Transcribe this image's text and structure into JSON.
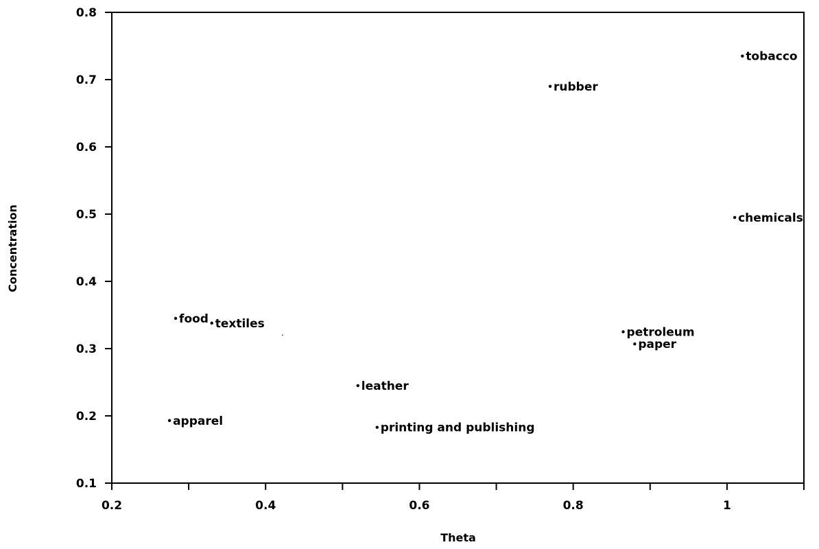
{
  "chart_data": {
    "type": "scatter",
    "xlabel": "Theta",
    "ylabel": "Concentration",
    "xlim": [
      0.2,
      1.1
    ],
    "ylim": [
      0.1,
      0.8
    ],
    "x_tick_labels": [
      {
        "value": 0.2,
        "label": "0.2"
      },
      {
        "value": 0.4,
        "label": "0.4"
      },
      {
        "value": 0.6,
        "label": "0.6"
      },
      {
        "value": 0.8,
        "label": "0.8"
      },
      {
        "value": 1.0,
        "label": "1"
      }
    ],
    "x_minor_ticks": [
      0.3,
      0.5,
      0.7,
      0.9,
      1.1
    ],
    "y_tick_labels": [
      {
        "value": 0.1,
        "label": "0.1"
      },
      {
        "value": 0.2,
        "label": "0.2"
      },
      {
        "value": 0.3,
        "label": "0.3"
      },
      {
        "value": 0.4,
        "label": "0.4"
      },
      {
        "value": 0.5,
        "label": "0.5"
      },
      {
        "value": 0.6,
        "label": "0.6"
      },
      {
        "value": 0.7,
        "label": "0.7"
      },
      {
        "value": 0.8,
        "label": "0.8"
      }
    ],
    "grid": false,
    "points": [
      {
        "label": "tobacco",
        "x": 1.02,
        "y": 0.735
      },
      {
        "label": "rubber",
        "x": 0.77,
        "y": 0.69
      },
      {
        "label": "chemicals",
        "x": 1.01,
        "y": 0.495
      },
      {
        "label": "food",
        "x": 0.283,
        "y": 0.345
      },
      {
        "label": "textiles",
        "x": 0.33,
        "y": 0.338
      },
      {
        "label": "petroleum",
        "x": 0.865,
        "y": 0.325
      },
      {
        "label": "paper",
        "x": 0.88,
        "y": 0.307
      },
      {
        "label": "leather",
        "x": 0.52,
        "y": 0.245
      },
      {
        "label": "apparel",
        "x": 0.275,
        "y": 0.193
      },
      {
        "label": "printing and publishing",
        "x": 0.545,
        "y": 0.183
      }
    ],
    "stray_marks": [
      {
        "x": 0.422,
        "y": 0.32
      }
    ]
  }
}
